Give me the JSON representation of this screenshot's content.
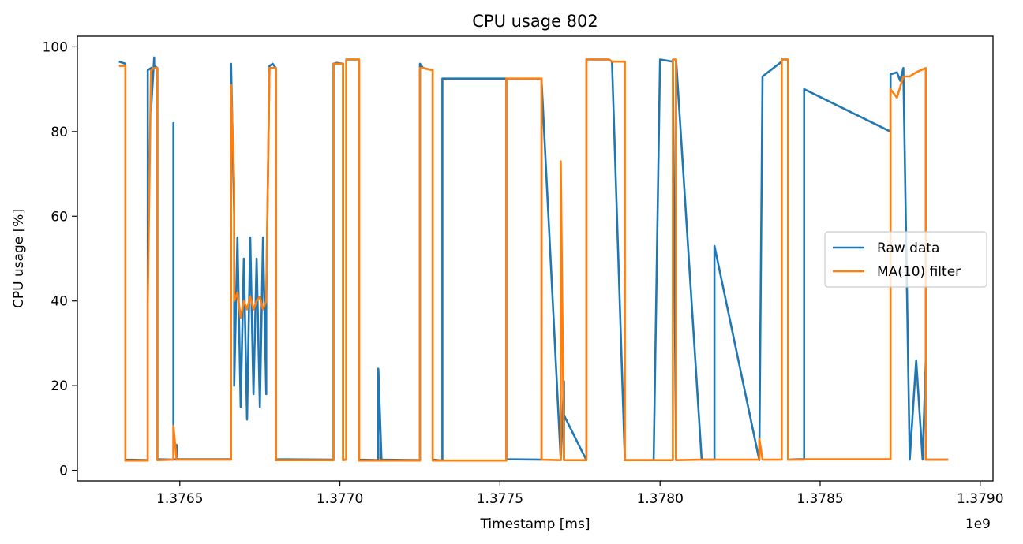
{
  "chart_data": {
    "type": "line",
    "title": "CPU usage 802",
    "xlabel": "Timestamp [ms]",
    "ylabel": "CPU usage [%]",
    "x_offset_label": "1e9",
    "xlim": [
      1.37618,
      1.37904
    ],
    "ylim": [
      -2.5,
      102.5
    ],
    "xticks": [
      1.3765,
      1.377,
      1.3775,
      1.378,
      1.3785,
      1.379
    ],
    "xtick_labels": [
      "1.3765",
      "1.3770",
      "1.3775",
      "1.3780",
      "1.3785",
      "1.3790"
    ],
    "yticks": [
      0,
      20,
      40,
      60,
      80,
      100
    ],
    "ytick_labels": [
      "0",
      "20",
      "40",
      "60",
      "80",
      "100"
    ],
    "grid": false,
    "legend_position": "center-right",
    "series": [
      {
        "name": "Raw data",
        "color": "#1f77b4",
        "x": [
          1.37631,
          1.37633,
          1.37633,
          1.3764,
          1.3764,
          1.3764,
          1.37641,
          1.37641,
          1.37642,
          1.37642,
          1.37643,
          1.37643,
          1.37648,
          1.37648,
          1.37648,
          1.37649,
          1.37649,
          1.37649,
          1.37666,
          1.37666,
          1.37666,
          1.37667,
          1.37667,
          1.37668,
          1.37669,
          1.3767,
          1.37671,
          1.37672,
          1.37673,
          1.37674,
          1.37675,
          1.37676,
          1.37677,
          1.37677,
          1.37678,
          1.37679,
          1.3768,
          1.3768,
          1.37698,
          1.37698,
          1.37699,
          1.37701,
          1.37701,
          1.37702,
          1.37702,
          1.37706,
          1.37706,
          1.37712,
          1.37712,
          1.37713,
          1.37725,
          1.37725,
          1.37726,
          1.37729,
          1.37729,
          1.37732,
          1.37732,
          1.37752,
          1.37752,
          1.37763,
          1.37763,
          1.37769,
          1.37769,
          1.3777,
          1.3777,
          1.3777,
          1.37777,
          1.37777,
          1.37778,
          1.37784,
          1.37784,
          1.37785,
          1.37789,
          1.37789,
          1.37798,
          1.378,
          1.37804,
          1.37805,
          1.37805,
          1.37813,
          1.37813,
          1.37817,
          1.37817,
          1.37831,
          1.37831,
          1.37832,
          1.37838,
          1.37838,
          1.3784,
          1.3784,
          1.37843,
          1.37845,
          1.37845,
          1.37872,
          1.37872,
          1.37874,
          1.37875,
          1.37876,
          1.37878,
          1.3788,
          1.37882,
          1.37883,
          1.37883,
          1.37888,
          1.37888,
          1.37889,
          1.3789
        ],
        "y": [
          96.5,
          96.0,
          2.5,
          2.4,
          37.0,
          94.5,
          95.0,
          85.0,
          97.5,
          95.5,
          95.0,
          2.6,
          2.5,
          82.0,
          2.6,
          2.5,
          6.0,
          2.6,
          2.6,
          91.0,
          96.0,
          60.0,
          20.0,
          55.0,
          15.0,
          50.0,
          12.0,
          55.0,
          18.0,
          50.0,
          15.0,
          55.0,
          18.0,
          40.0,
          95.5,
          96.0,
          95.0,
          2.6,
          2.5,
          96.0,
          96.2,
          96.0,
          2.5,
          2.5,
          97.0,
          97.0,
          2.5,
          2.4,
          24.0,
          2.5,
          2.4,
          96.0,
          95.0,
          94.5,
          2.5,
          2.3,
          92.5,
          92.5,
          2.6,
          2.5,
          92.0,
          2.5,
          2.4,
          21.0,
          2.5,
          13.0,
          2.4,
          97.0,
          97.0,
          97.0,
          97.0,
          96.5,
          2.5,
          2.4,
          2.4,
          97.0,
          96.5,
          2.5,
          97.0,
          2.6,
          2.5,
          2.5,
          53.0,
          2.4,
          2.5,
          93.0,
          96.5,
          97.0,
          97.0,
          2.5,
          2.6,
          2.6,
          90.0,
          80.0,
          93.5,
          94.0,
          92.0,
          95.0,
          2.5,
          26.0,
          2.5,
          26.0,
          2.5,
          2.5,
          2.5,
          2.5,
          2.5
        ]
      },
      {
        "name": "MA(10) filter",
        "color": "#ff7f0e",
        "x": [
          1.37631,
          1.37633,
          1.37633,
          1.3764,
          1.3764,
          1.37641,
          1.37642,
          1.37643,
          1.37643,
          1.37648,
          1.37648,
          1.37649,
          1.37666,
          1.37666,
          1.37667,
          1.37667,
          1.37668,
          1.37669,
          1.3767,
          1.37671,
          1.37672,
          1.37673,
          1.37674,
          1.37675,
          1.37676,
          1.37677,
          1.37677,
          1.37678,
          1.3768,
          1.3768,
          1.37698,
          1.37698,
          1.37701,
          1.37701,
          1.37702,
          1.37702,
          1.37706,
          1.37706,
          1.37713,
          1.37725,
          1.37725,
          1.37726,
          1.37729,
          1.37729,
          1.37752,
          1.37752,
          1.37763,
          1.37763,
          1.37769,
          1.37769,
          1.3777,
          1.3777,
          1.3777,
          1.37777,
          1.37777,
          1.37784,
          1.37785,
          1.37789,
          1.37789,
          1.37804,
          1.37804,
          1.37805,
          1.37805,
          1.37813,
          1.37813,
          1.37831,
          1.37831,
          1.37832,
          1.37838,
          1.37838,
          1.3784,
          1.3784,
          1.37845,
          1.37845,
          1.37872,
          1.37872,
          1.37874,
          1.37876,
          1.37878,
          1.3788,
          1.37883,
          1.37883,
          1.37889,
          1.3789
        ],
        "y": [
          95.5,
          95.5,
          2.3,
          2.3,
          40.0,
          94.5,
          95.0,
          95.0,
          2.4,
          2.5,
          10.5,
          2.5,
          2.5,
          91.0,
          68.0,
          40.0,
          42.0,
          36.0,
          40.0,
          38.0,
          41.0,
          38.0,
          40.0,
          41.0,
          38.0,
          40.0,
          41.0,
          95.0,
          95.0,
          2.4,
          2.4,
          96.0,
          96.0,
          2.4,
          2.5,
          97.0,
          97.0,
          2.3,
          2.3,
          2.3,
          95.0,
          95.0,
          94.5,
          2.3,
          2.3,
          92.5,
          92.5,
          2.5,
          2.4,
          73.0,
          2.4,
          6.0,
          2.4,
          2.4,
          97.0,
          97.0,
          96.5,
          96.5,
          2.4,
          2.4,
          97.0,
          97.0,
          2.4,
          2.5,
          2.5,
          2.5,
          7.5,
          2.5,
          2.5,
          97.0,
          97.0,
          2.5,
          2.5,
          2.6,
          2.6,
          90.0,
          88.0,
          93.0,
          93.0,
          94.0,
          95.0,
          2.5,
          2.5,
          2.5
        ]
      }
    ]
  }
}
